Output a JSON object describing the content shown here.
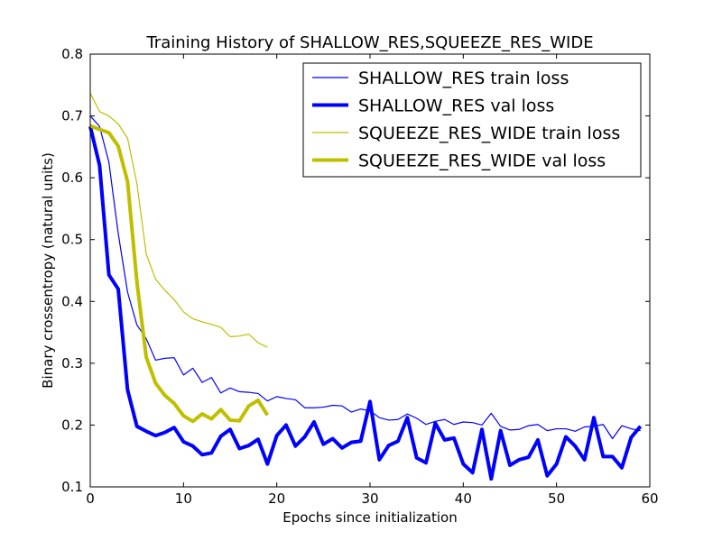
{
  "chart_data": {
    "type": "line",
    "title": "Training History of SHALLOW_RES,SQUEEZE_RES_WIDE",
    "xlabel": "Epochs since initialization",
    "ylabel": "Binary crossentropy (natural units)",
    "xlim": [
      0,
      60
    ],
    "ylim": [
      0.1,
      0.8
    ],
    "x_ticks": [
      "0",
      "10",
      "20",
      "30",
      "40",
      "50",
      "60"
    ],
    "y_ticks": [
      "0.1",
      "0.2",
      "0.3",
      "0.4",
      "0.5",
      "0.6",
      "0.7",
      "0.8"
    ],
    "grid": false,
    "legend_position": "top-right",
    "series": [
      {
        "name": "SHALLOW_RES train loss",
        "color": "#0000ff",
        "style": "thin",
        "x": [
          0,
          1,
          2,
          3,
          4,
          5,
          6,
          7,
          8,
          9,
          10,
          11,
          12,
          13,
          14,
          15,
          16,
          17,
          18,
          19,
          20,
          21,
          22,
          23,
          24,
          25,
          26,
          27,
          28,
          29,
          30,
          31,
          32,
          33,
          34,
          35,
          36,
          37,
          38,
          39,
          40,
          41,
          42,
          43,
          44,
          45,
          46,
          47,
          48,
          49,
          50,
          51,
          52,
          53,
          54,
          55,
          56,
          57,
          58,
          59
        ],
        "values": [
          0.7,
          0.683,
          0.625,
          0.51,
          0.415,
          0.362,
          0.34,
          0.305,
          0.308,
          0.309,
          0.281,
          0.292,
          0.269,
          0.277,
          0.252,
          0.26,
          0.254,
          0.253,
          0.251,
          0.239,
          0.246,
          0.243,
          0.241,
          0.228,
          0.228,
          0.229,
          0.232,
          0.231,
          0.221,
          0.226,
          0.223,
          0.212,
          0.208,
          0.209,
          0.218,
          0.211,
          0.201,
          0.206,
          0.209,
          0.201,
          0.205,
          0.204,
          0.2,
          0.219,
          0.198,
          0.192,
          0.193,
          0.199,
          0.201,
          0.191,
          0.194,
          0.194,
          0.19,
          0.197,
          0.198,
          0.201,
          0.178,
          0.199,
          0.194,
          0.191
        ]
      },
      {
        "name": "SHALLOW_RES val loss",
        "color": "#0000ff",
        "style": "thick",
        "x": [
          0,
          1,
          2,
          3,
          4,
          5,
          6,
          7,
          8,
          9,
          10,
          11,
          12,
          13,
          14,
          15,
          16,
          17,
          18,
          19,
          20,
          21,
          22,
          23,
          24,
          25,
          26,
          27,
          28,
          29,
          30,
          31,
          32,
          33,
          34,
          35,
          36,
          37,
          38,
          39,
          40,
          41,
          42,
          43,
          44,
          45,
          46,
          47,
          48,
          49,
          50,
          51,
          52,
          53,
          54,
          55,
          56,
          57,
          58,
          59
        ],
        "values": [
          0.683,
          0.62,
          0.443,
          0.42,
          0.257,
          0.198,
          0.19,
          0.183,
          0.188,
          0.196,
          0.173,
          0.166,
          0.152,
          0.155,
          0.182,
          0.193,
          0.162,
          0.167,
          0.177,
          0.137,
          0.183,
          0.2,
          0.166,
          0.181,
          0.205,
          0.169,
          0.178,
          0.163,
          0.172,
          0.174,
          0.238,
          0.144,
          0.167,
          0.174,
          0.212,
          0.147,
          0.139,
          0.203,
          0.176,
          0.179,
          0.137,
          0.123,
          0.193,
          0.113,
          0.191,
          0.135,
          0.144,
          0.148,
          0.176,
          0.118,
          0.137,
          0.181,
          0.166,
          0.144,
          0.212,
          0.149,
          0.149,
          0.131,
          0.18,
          0.198
        ]
      },
      {
        "name": "SQUEEZE_RES_WIDE train loss",
        "color": "#bfbf00",
        "style": "thin",
        "x": [
          0,
          1,
          2,
          3,
          4,
          5,
          6,
          7,
          8,
          9,
          10,
          11,
          12,
          13,
          14,
          15,
          16,
          17,
          18,
          19
        ],
        "values": [
          0.737,
          0.707,
          0.7,
          0.687,
          0.664,
          0.591,
          0.477,
          0.436,
          0.418,
          0.403,
          0.383,
          0.372,
          0.367,
          0.363,
          0.358,
          0.343,
          0.344,
          0.347,
          0.333,
          0.326
        ]
      },
      {
        "name": "SQUEEZE_RES_WIDE val loss",
        "color": "#bfbf00",
        "style": "thick",
        "x": [
          0,
          1,
          2,
          3,
          4,
          5,
          6,
          7,
          8,
          9,
          10,
          11,
          12,
          13,
          14,
          15,
          16,
          17,
          18,
          19
        ],
        "values": [
          0.684,
          0.678,
          0.673,
          0.651,
          0.594,
          0.432,
          0.31,
          0.268,
          0.248,
          0.235,
          0.215,
          0.206,
          0.218,
          0.21,
          0.225,
          0.208,
          0.207,
          0.231,
          0.24,
          0.216
        ]
      }
    ]
  }
}
